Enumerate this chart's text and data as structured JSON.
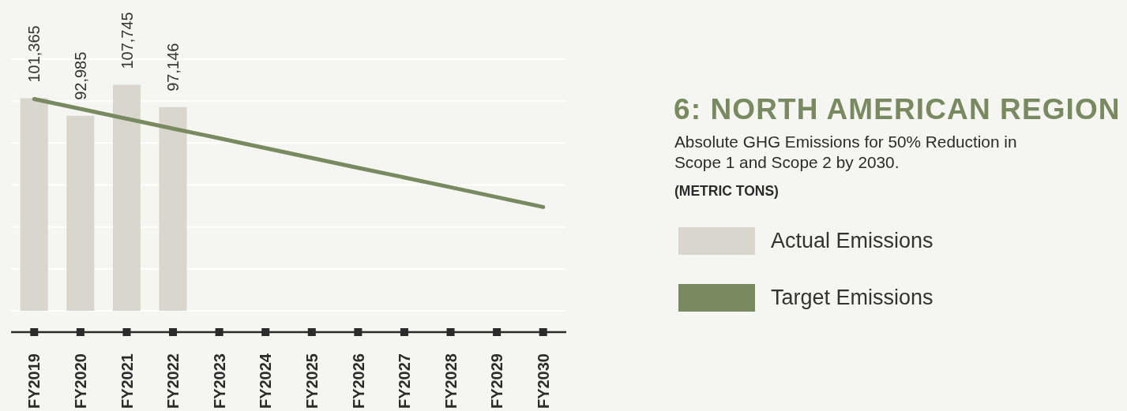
{
  "chart_data": {
    "type": "bar",
    "title": "6: NORTH AMERICAN REGION",
    "subtitle": "Absolute GHG Emissions for 50% Reduction in Scope 1 and Scope 2 by 2030.",
    "annotations": [
      "(METRIC TONS)"
    ],
    "categories": [
      "FY2019",
      "FY2020",
      "FY2021",
      "FY2022",
      "FY2023",
      "FY2024",
      "FY2025",
      "FY2026",
      "FY2027",
      "FY2028",
      "FY2029",
      "FY2030"
    ],
    "series": [
      {
        "name": "Actual Emissions",
        "color": "#d9d6ce",
        "values": [
          101365,
          92985,
          107745,
          97146,
          null,
          null,
          null,
          null,
          null,
          null,
          null,
          null
        ],
        "value_labels": [
          "101,365",
          "92,985",
          "107,745",
          "97,146",
          null,
          null,
          null,
          null,
          null,
          null,
          null,
          null
        ]
      },
      {
        "name": "Target Emissions",
        "type": "line",
        "color": "#7a8a60",
        "values": [
          101000,
          96300,
          91600,
          86900,
          82300,
          77600,
          72900,
          68200,
          63600,
          58900,
          54200,
          49500
        ]
      }
    ],
    "grid": "y",
    "legend": "right",
    "tick_labels": "x"
  }
}
